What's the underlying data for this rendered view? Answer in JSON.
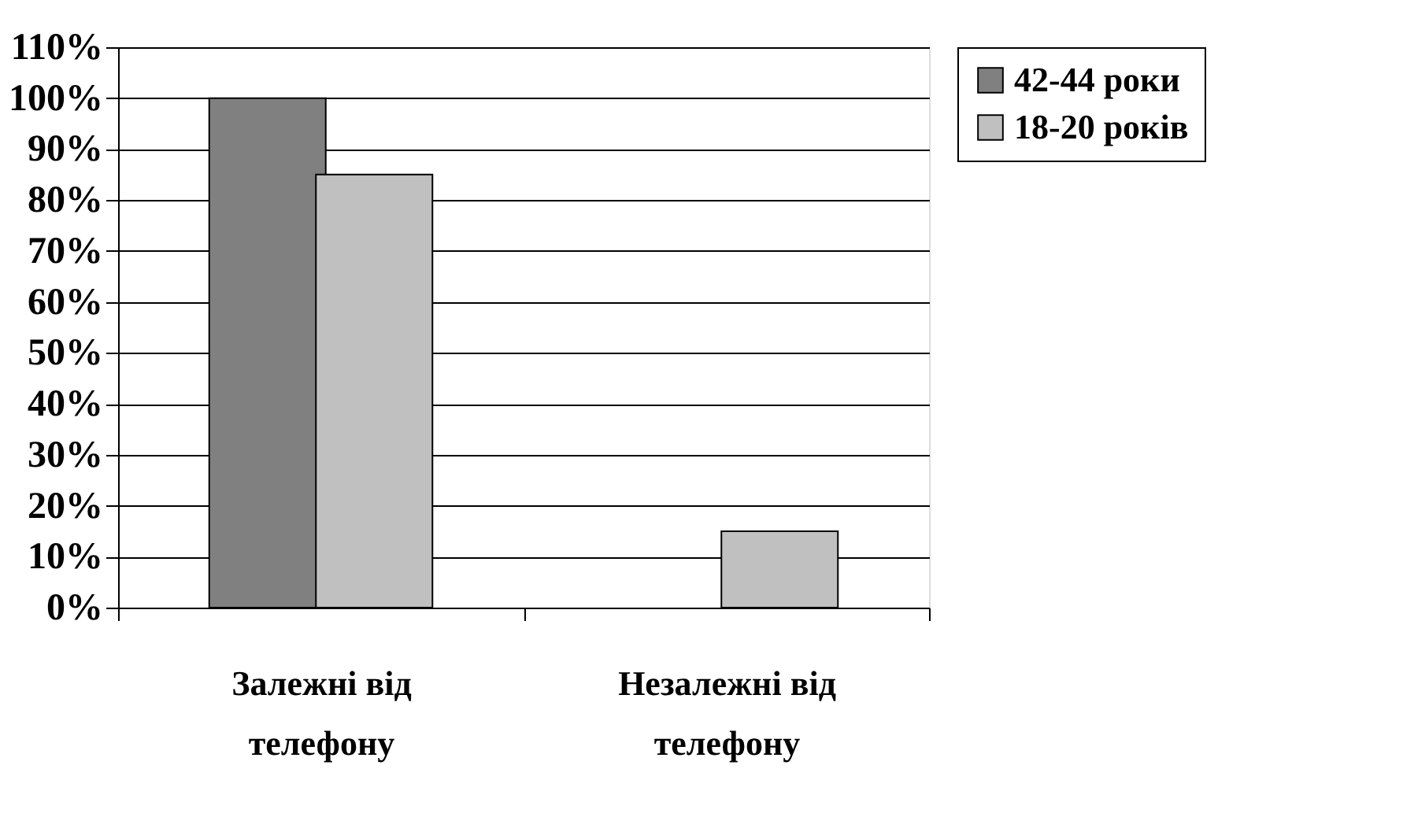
{
  "chart_data": {
    "type": "bar",
    "categories": [
      "Залежні від телефону",
      "Незалежні від телефону"
    ],
    "series": [
      {
        "name": "42-44 роки",
        "color": "#808080",
        "values": [
          100,
          null
        ]
      },
      {
        "name": "18-20 років",
        "color": "#c0c0c0",
        "values": [
          85,
          15
        ]
      }
    ],
    "ylim": [
      0,
      110
    ],
    "yticks": [
      {
        "value": 0,
        "label": "0%"
      },
      {
        "value": 10,
        "label": "10%"
      },
      {
        "value": 20,
        "label": "20%"
      },
      {
        "value": 30,
        "label": "30%"
      },
      {
        "value": 40,
        "label": "40%"
      },
      {
        "value": 50,
        "label": "50%"
      },
      {
        "value": 60,
        "label": "60%"
      },
      {
        "value": 70,
        "label": "70%"
      },
      {
        "value": 80,
        "label": "80%"
      },
      {
        "value": 90,
        "label": "90%"
      },
      {
        "value": 100,
        "label": "100%"
      },
      {
        "value": 110,
        "label": "110%"
      }
    ],
    "grid": "y",
    "legend": "right"
  }
}
